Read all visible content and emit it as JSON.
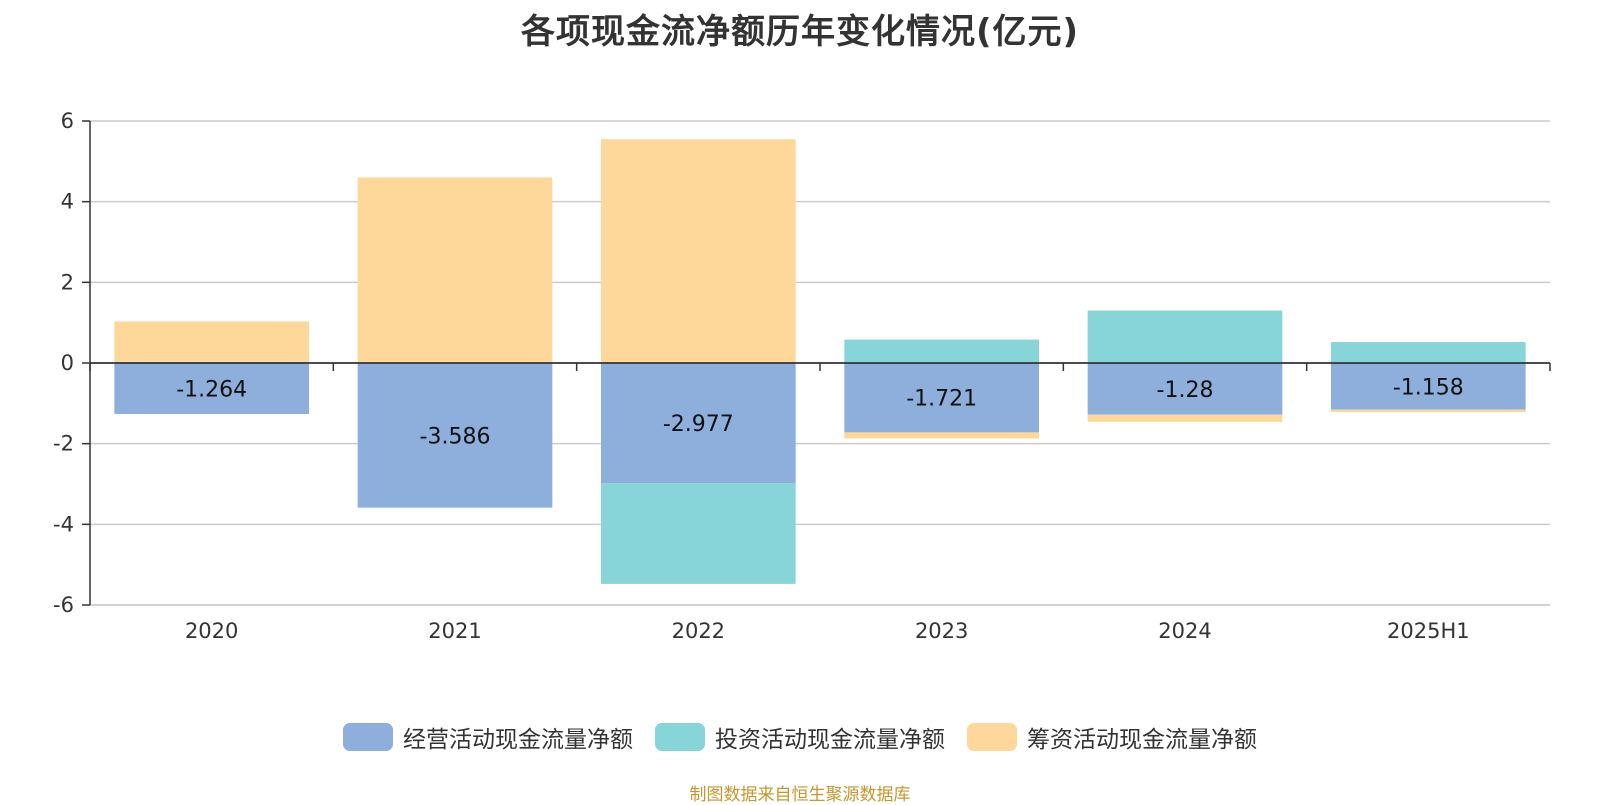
{
  "colors": {
    "operating": "#8eaedb",
    "investing": "#87d5d8",
    "financing": "#fed89b",
    "axis": "#333333",
    "grid": "#cccccc",
    "source": "#c8962e"
  },
  "chart_data": {
    "type": "bar",
    "stacked": true,
    "title": "各项现金流净额历年变化情况(亿元)",
    "categories": [
      "2020",
      "2021",
      "2022",
      "2023",
      "2024",
      "2025H1"
    ],
    "ylim": [
      -6,
      6
    ],
    "yticks": [
      6,
      4,
      2,
      0,
      -2,
      -4,
      -6
    ],
    "grid": true,
    "legend_position": "bottom-center",
    "series": [
      {
        "name": "经营活动现金流量净额",
        "color_key": "operating",
        "values": [
          -1.264,
          -3.586,
          -2.977,
          -1.721,
          -1.28,
          -1.158
        ],
        "labels": [
          "-1.264",
          "-3.586",
          "-2.977",
          "-1.721",
          "-1.28",
          "-1.158"
        ]
      },
      {
        "name": "投资活动现金流量净额",
        "color_key": "investing",
        "values": [
          0.03,
          0.0,
          -2.5,
          0.58,
          1.3,
          0.52
        ]
      },
      {
        "name": "筹资活动现金流量净额",
        "color_key": "financing",
        "values": [
          1.0,
          4.6,
          5.55,
          -0.15,
          -0.18,
          -0.06
        ]
      }
    ]
  },
  "source_note": "制图数据来自恒生聚源数据库"
}
